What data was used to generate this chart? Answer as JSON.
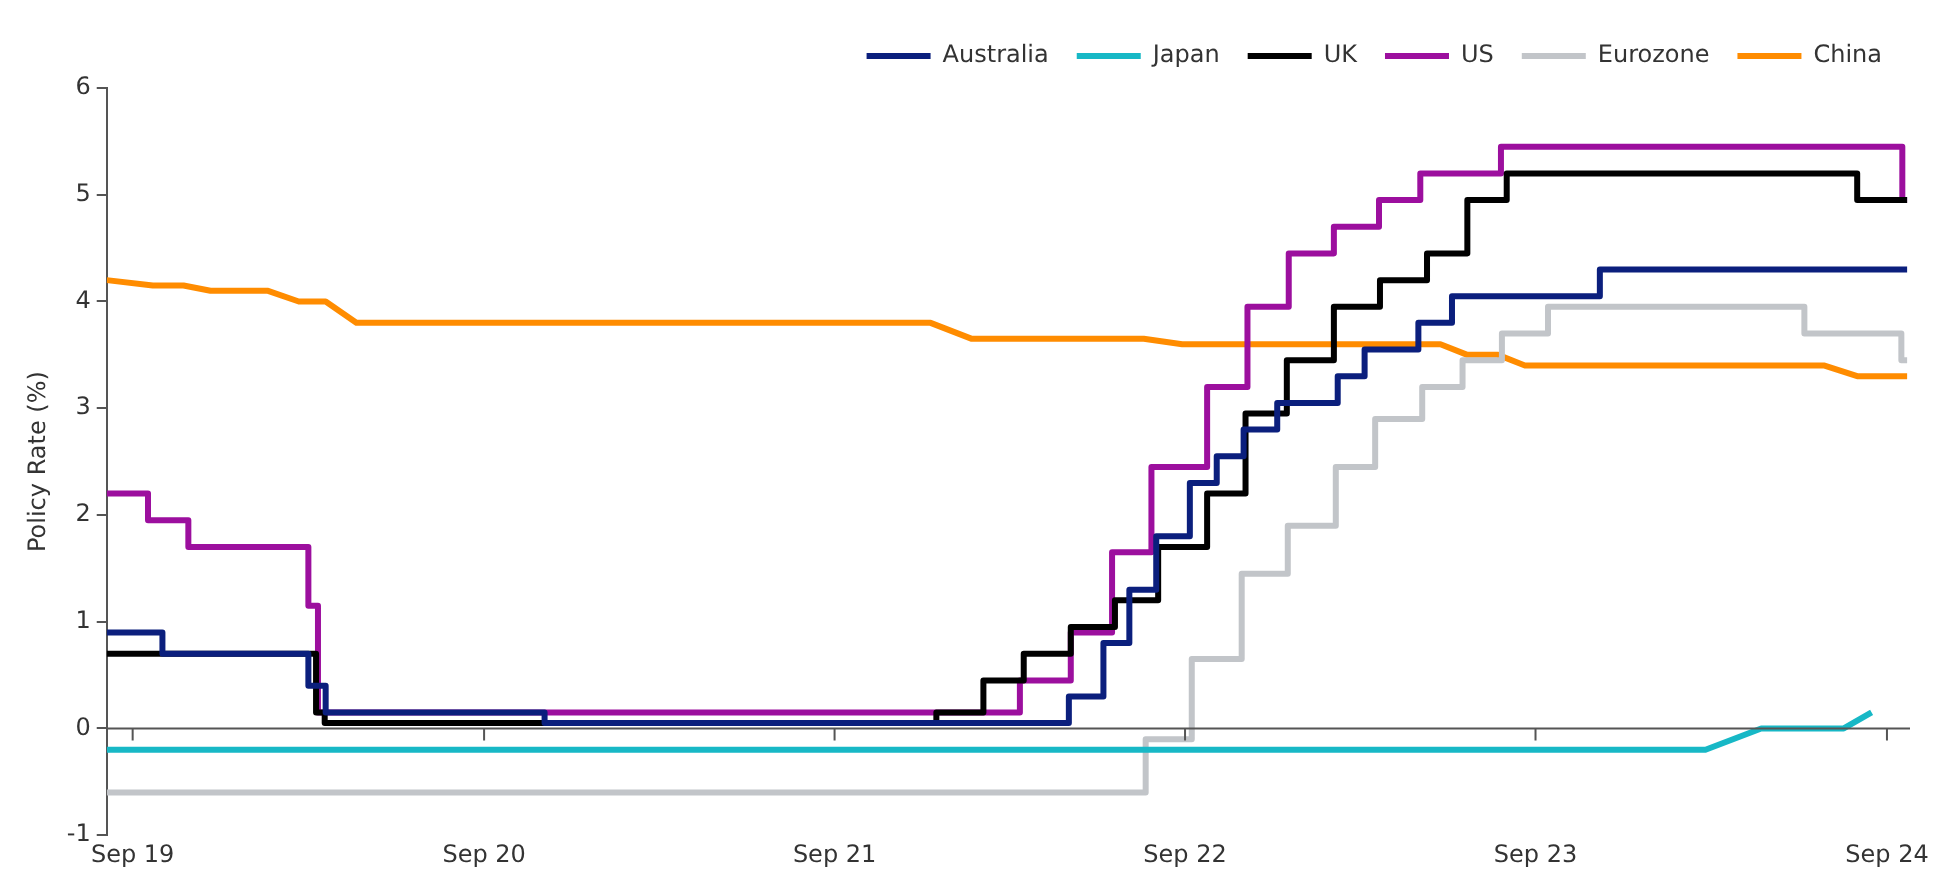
{
  "chart_data": {
    "type": "line",
    "ylabel": "Policy Rate (%)",
    "xlim": [
      "2019-08-05",
      "2024-09-25"
    ],
    "xticks": [
      {
        "value": "2019-09-01",
        "label": "Sep 19"
      },
      {
        "value": "2020-09-01",
        "label": "Sep 20"
      },
      {
        "value": "2021-09-01",
        "label": "Sep 21"
      },
      {
        "value": "2022-09-01",
        "label": "Sep 22"
      },
      {
        "value": "2023-09-01",
        "label": "Sep 23"
      },
      {
        "value": "2024-09-01",
        "label": "Sep 24"
      }
    ],
    "ylim": [
      -1,
      6
    ],
    "yticks": [
      -1,
      0,
      1,
      2,
      3,
      4,
      5,
      6
    ],
    "grid": false,
    "ref_lines": [
      {
        "axis": "y",
        "value": 0,
        "color": "#555555"
      }
    ],
    "legend": "top right",
    "marker": "none",
    "line_style": "solid",
    "series": [
      {
        "name": "Australia",
        "color": "#0b1f7d",
        "type": "step",
        "x": [
          "2019-08-05",
          "2019-10-02",
          "2020-03-02",
          "2020-03-20",
          "2020-11-03",
          "2022-05-03",
          "2022-06-08",
          "2022-07-05",
          "2022-08-02",
          "2022-09-06",
          "2022-10-04",
          "2022-11-01",
          "2022-12-06",
          "2023-02-07",
          "2023-03-07",
          "2023-05-02",
          "2023-06-06",
          "2023-11-07",
          "2024-09-22"
        ],
        "values": [
          0.9,
          0.7,
          0.4,
          0.15,
          0.05,
          0.3,
          0.8,
          1.3,
          1.8,
          2.3,
          2.55,
          2.8,
          3.05,
          3.3,
          3.55,
          3.8,
          4.05,
          4.3,
          4.3
        ]
      },
      {
        "name": "Japan",
        "color": "#17b8c6",
        "type": "line",
        "x": [
          "2019-08-05",
          "2024-02-25",
          "2024-04-23",
          "2024-07-18",
          "2024-08-16"
        ],
        "values": [
          -0.2,
          -0.2,
          0,
          0,
          0.15
        ]
      },
      {
        "name": "UK",
        "color": "#000000",
        "type": "step",
        "x": [
          "2019-08-05",
          "2020-03-10",
          "2020-03-19",
          "2021-12-16",
          "2022-02-03",
          "2022-03-17",
          "2022-05-05",
          "2022-06-20",
          "2022-08-04",
          "2022-09-24",
          "2022-11-03",
          "2022-12-16",
          "2023-02-03",
          "2023-03-23",
          "2023-05-11",
          "2023-06-22",
          "2023-08-02",
          "2024-08-01",
          "2024-09-22"
        ],
        "values": [
          0.7,
          0.15,
          0.05,
          0.15,
          0.45,
          0.7,
          0.95,
          1.2,
          1.7,
          2.2,
          2.95,
          3.45,
          3.95,
          4.2,
          4.45,
          4.95,
          5.2,
          4.95,
          4.95
        ]
      },
      {
        "name": "US",
        "color": "#9c0f9e",
        "type": "step",
        "x": [
          "2019-08-05",
          "2019-09-17",
          "2019-10-29",
          "2020-03-02",
          "2020-03-12",
          "2022-03-13",
          "2022-05-05",
          "2022-06-17",
          "2022-07-28",
          "2022-09-24",
          "2022-11-05",
          "2022-12-18",
          "2023-02-03",
          "2023-03-22",
          "2023-05-04",
          "2023-07-27",
          "2024-09-17",
          "2024-09-22"
        ],
        "values": [
          2.2,
          1.95,
          1.7,
          1.15,
          0.15,
          0.45,
          0.9,
          1.65,
          2.45,
          3.2,
          3.95,
          4.45,
          4.7,
          4.95,
          5.2,
          5.45,
          4.95,
          4.95
        ]
      },
      {
        "name": "Eurozone",
        "color": "#c2c5c9",
        "type": "step",
        "x": [
          "2019-08-05",
          "2022-07-22",
          "2022-09-08",
          "2022-10-30",
          "2022-12-17",
          "2023-02-05",
          "2023-03-18",
          "2023-05-06",
          "2023-06-17",
          "2023-07-28",
          "2023-09-14",
          "2024-06-07",
          "2024-09-16",
          "2024-09-22"
        ],
        "values": [
          -0.6,
          -0.1,
          0.65,
          1.45,
          1.9,
          2.45,
          2.9,
          3.2,
          3.45,
          3.7,
          3.95,
          3.7,
          3.45,
          3.45
        ]
      },
      {
        "name": "China",
        "color": "#ff8c00",
        "type": "line",
        "x": [
          "2019-08-05",
          "2019-09-22",
          "2019-10-24",
          "2019-11-21",
          "2020-01-20",
          "2020-02-21",
          "2020-03-20",
          "2020-04-21",
          "2021-12-10",
          "2022-01-22",
          "2022-07-20",
          "2022-08-29",
          "2023-05-25",
          "2023-06-22",
          "2023-07-24",
          "2023-08-21",
          "2024-06-28",
          "2024-08-01",
          "2024-09-22"
        ],
        "values": [
          4.2,
          4.15,
          4.15,
          4.1,
          4.1,
          4.0,
          4.0,
          3.8,
          3.8,
          3.65,
          3.65,
          3.6,
          3.6,
          3.5,
          3.5,
          3.4,
          3.4,
          3.3,
          3.3
        ]
      }
    ]
  }
}
